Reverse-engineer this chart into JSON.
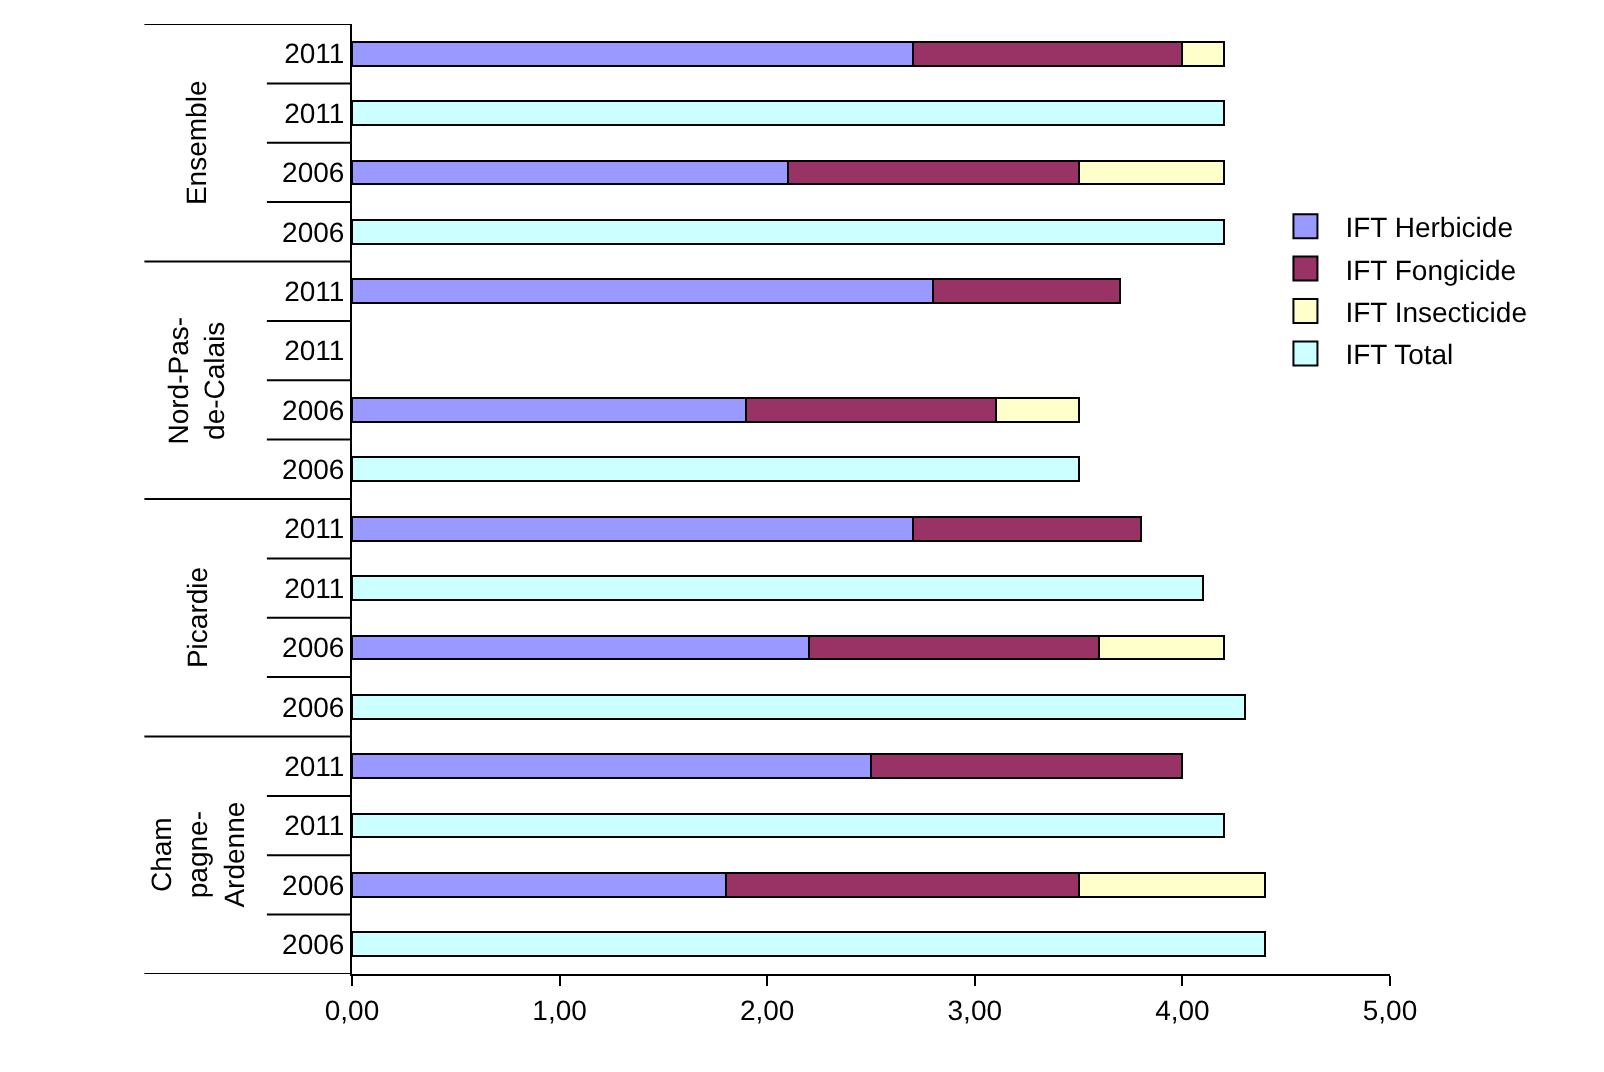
{
  "chart_data": {
    "type": "bar",
    "orientation": "horizontal",
    "stacked": true,
    "categories": [
      "2011",
      "2011",
      "2006",
      "2006",
      "2011",
      "2011",
      "2006",
      "2006",
      "2011",
      "2011",
      "2006",
      "2006",
      "2011",
      "2011",
      "2006",
      "2006"
    ],
    "series": [
      {
        "name": "IFT Herbicide",
        "color": "#9999ff",
        "values": [
          2.7,
          null,
          2.1,
          null,
          2.8,
          null,
          1.9,
          null,
          2.7,
          null,
          2.2,
          null,
          2.5,
          null,
          1.8,
          null
        ]
      },
      {
        "name": "IFT Fongicide",
        "color": "#993366",
        "values": [
          1.3,
          null,
          1.4,
          null,
          0.9,
          null,
          1.2,
          null,
          1.1,
          null,
          1.4,
          null,
          1.5,
          null,
          1.7,
          null
        ]
      },
      {
        "name": "IFT Insecticide",
        "color": "#ffffcc",
        "values": [
          0.2,
          null,
          0.7,
          null,
          null,
          null,
          0.4,
          null,
          null,
          null,
          0.6,
          null,
          null,
          null,
          0.9,
          null
        ]
      },
      {
        "name": "IFT Total",
        "color": "#ccffff",
        "values": [
          null,
          4.2,
          null,
          4.2,
          null,
          null,
          null,
          3.5,
          null,
          4.1,
          null,
          4.3,
          null,
          4.2,
          null,
          4.4
        ]
      }
    ],
    "annotations": [
      "Ensemble",
      "Nord-Pas-\nde-Calais",
      "Picardie",
      "Cham\npagne-\nArdenne"
    ],
    "xlim": [
      0,
      5
    ],
    "xticks": [
      {
        "value": 0,
        "label": "0,00"
      },
      {
        "value": 1,
        "label": "1,00"
      },
      {
        "value": 2,
        "label": "2,00"
      },
      {
        "value": 3,
        "label": "3,00"
      },
      {
        "value": 4,
        "label": "4,00"
      },
      {
        "value": 5,
        "label": "5,00"
      }
    ],
    "legend": "right"
  }
}
